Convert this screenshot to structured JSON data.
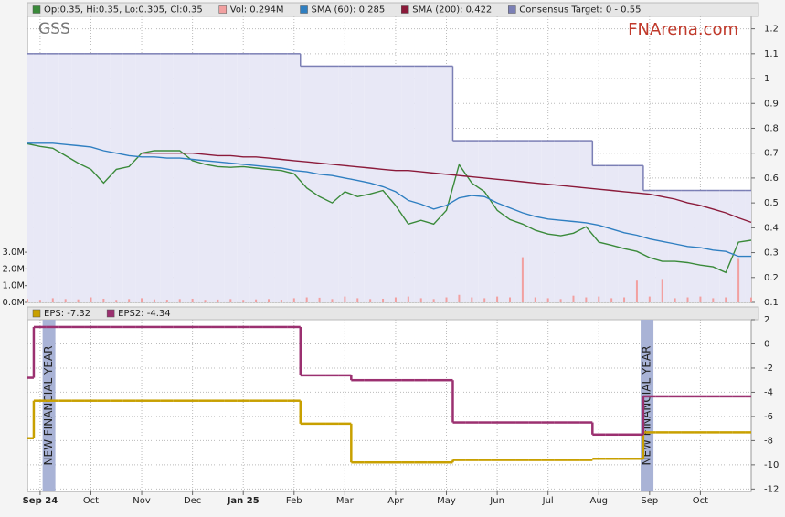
{
  "chart_data": [
    {
      "type": "line",
      "title": "GSS",
      "watermark": "FNArena.com",
      "categories": [
        null,
        "Sep 24",
        null,
        null,
        null,
        "Oct",
        null,
        null,
        null,
        "Nov",
        null,
        null,
        null,
        "Dec",
        null,
        null,
        null,
        "Jan 25",
        null,
        null,
        null,
        "Feb",
        null,
        null,
        null,
        "Mar",
        null,
        null,
        null,
        "Apr",
        null,
        null,
        null,
        "May",
        null,
        null,
        null,
        "Jun",
        null,
        null,
        null,
        "Jul",
        null,
        null,
        null,
        "Aug",
        null,
        null,
        null,
        "Sep",
        null,
        null,
        null,
        "Oct",
        null,
        null,
        null,
        null
      ],
      "ylim": [
        0.1,
        1.25
      ],
      "yticks": [
        0.1,
        0.2,
        0.3,
        0.4,
        0.5,
        0.6,
        0.7,
        0.8,
        0.9,
        1.0,
        1.1,
        1.2
      ],
      "y2lim": [
        0,
        17100000
      ],
      "y2ticks": [
        {
          "value": 0,
          "label": "0.0M"
        },
        {
          "value": 1000000,
          "label": "1.0M"
        },
        {
          "value": 2000000,
          "label": "2.0M"
        },
        {
          "value": 3000000,
          "label": "3.0M"
        }
      ],
      "grid": true,
      "series": [
        {
          "name": "Consensus Target: 0 - 0.55",
          "type": "step-area",
          "color": "#7b7fb5",
          "fill": "#e8e8f6",
          "values": [
            1.1,
            1.1,
            1.1,
            1.1,
            1.1,
            1.1,
            1.1,
            1.1,
            1.1,
            1.1,
            1.1,
            1.1,
            1.1,
            1.1,
            1.1,
            1.1,
            1.1,
            1.1,
            1.1,
            1.1,
            1.1,
            1.1,
            1.05,
            1.05,
            1.05,
            1.05,
            1.05,
            1.05,
            1.05,
            1.05,
            1.05,
            1.05,
            1.05,
            1.05,
            0.75,
            0.75,
            0.75,
            0.75,
            0.75,
            0.75,
            0.75,
            0.75,
            0.75,
            0.75,
            0.75,
            0.65,
            0.65,
            0.65,
            0.65,
            0.55,
            0.55,
            0.55,
            0.55,
            0.55,
            0.55,
            0.55,
            0.55,
            0.55
          ]
        },
        {
          "name": "Vol: 0.294M",
          "type": "bar",
          "axis": "y2",
          "color": "#f2a0a0",
          "values": [
            200000,
            150000,
            250000,
            200000,
            180000,
            300000,
            220000,
            150000,
            200000,
            250000,
            180000,
            160000,
            200000,
            220000,
            150000,
            170000,
            200000,
            150000,
            180000,
            200000,
            160000,
            250000,
            300000,
            280000,
            200000,
            350000,
            250000,
            200000,
            220000,
            300000,
            350000,
            250000,
            200000,
            300000,
            450000,
            300000,
            250000,
            350000,
            300000,
            2700000,
            300000,
            250000,
            200000,
            400000,
            300000,
            350000,
            250000,
            300000,
            1300000,
            350000,
            1400000,
            250000,
            300000,
            350000,
            250000,
            300000,
            2600000,
            294000
          ]
        },
        {
          "name": "Op:0.35, Hi:0.35, Lo:0.305, Cl:0.35",
          "type": "line",
          "color": "#3a8a3a",
          "values": [
            0.738,
            0.727,
            0.72,
            0.69,
            0.66,
            0.635,
            0.58,
            0.635,
            0.646,
            0.7,
            0.71,
            0.71,
            0.71,
            0.67,
            0.655,
            0.646,
            0.643,
            0.646,
            0.64,
            0.635,
            0.63,
            0.617,
            0.56,
            0.525,
            0.5,
            0.545,
            0.525,
            0.536,
            0.55,
            0.49,
            0.415,
            0.43,
            0.415,
            0.47,
            0.654,
            0.58,
            0.545,
            0.47,
            0.433,
            0.415,
            0.39,
            0.375,
            0.368,
            0.378,
            0.404,
            0.342,
            0.33,
            0.316,
            0.305,
            0.28,
            0.265,
            0.265,
            0.26,
            0.25,
            0.243,
            0.22,
            0.342,
            0.35
          ]
        },
        {
          "name": "SMA (60): 0.285",
          "type": "line",
          "color": "#2f7fc1",
          "values": [
            0.74,
            0.74,
            0.74,
            0.735,
            0.73,
            0.725,
            0.71,
            0.7,
            0.69,
            0.685,
            0.685,
            0.68,
            0.68,
            0.675,
            0.67,
            0.665,
            0.66,
            0.655,
            0.65,
            0.645,
            0.64,
            0.63,
            0.625,
            0.615,
            0.61,
            0.6,
            0.59,
            0.58,
            0.565,
            0.545,
            0.51,
            0.495,
            0.475,
            0.49,
            0.52,
            0.53,
            0.525,
            0.5,
            0.48,
            0.46,
            0.445,
            0.435,
            0.43,
            0.425,
            0.42,
            0.41,
            0.395,
            0.38,
            0.37,
            0.355,
            0.345,
            0.335,
            0.325,
            0.32,
            0.31,
            0.305,
            0.285,
            0.285
          ]
        },
        {
          "name": "SMA (200): 0.422",
          "type": "line",
          "color": "#8b1a3a",
          "values": [
            null,
            null,
            null,
            null,
            null,
            null,
            null,
            null,
            null,
            0.7,
            0.7,
            0.7,
            0.7,
            0.7,
            0.695,
            0.69,
            0.69,
            0.685,
            0.685,
            0.68,
            0.675,
            0.67,
            0.665,
            0.66,
            0.655,
            0.65,
            0.645,
            0.64,
            0.635,
            0.63,
            0.63,
            0.625,
            0.62,
            0.615,
            0.61,
            0.605,
            0.6,
            0.595,
            0.59,
            0.585,
            0.58,
            0.575,
            0.57,
            0.565,
            0.56,
            0.555,
            0.55,
            0.545,
            0.54,
            0.535,
            0.525,
            0.515,
            0.5,
            0.49,
            0.475,
            0.46,
            0.44,
            0.422
          ]
        }
      ]
    },
    {
      "type": "line",
      "ylim": [
        -12.2,
        2
      ],
      "yticks": [
        2,
        0,
        -2,
        -4,
        -6,
        -8,
        -10,
        -12
      ],
      "grid": true,
      "annotations": [
        "NEW FINANCIAL YEAR",
        "NEW FINANCIAL YEAR"
      ],
      "series": [
        {
          "name": "EPS: -7.32",
          "type": "step",
          "color": "#c8a000",
          "values": [
            -7.8,
            -4.7,
            -4.7,
            -4.7,
            -4.7,
            -4.7,
            -4.7,
            -4.7,
            -4.7,
            -4.7,
            -4.7,
            -4.7,
            -4.7,
            -4.7,
            -4.7,
            -4.7,
            -4.7,
            -4.7,
            -4.7,
            -4.7,
            -4.7,
            -4.7,
            -6.6,
            -6.6,
            -6.6,
            -6.6,
            -9.8,
            -9.8,
            -9.8,
            -9.8,
            -9.8,
            -9.8,
            -9.8,
            -9.8,
            -9.6,
            -9.6,
            -9.6,
            -9.6,
            -9.6,
            -9.6,
            -9.6,
            -9.6,
            -9.6,
            -9.6,
            -9.6,
            -9.5,
            -9.5,
            -9.5,
            -9.5,
            -7.32,
            -7.32,
            -7.32,
            -7.32,
            -7.32,
            -7.32,
            -7.32,
            -7.32,
            -7.32
          ]
        },
        {
          "name": "EPS2: -4.34",
          "type": "step",
          "color": "#9b3070",
          "values": [
            -2.8,
            1.4,
            1.4,
            1.4,
            1.4,
            1.4,
            1.4,
            1.4,
            1.4,
            1.4,
            1.4,
            1.4,
            1.4,
            1.4,
            1.4,
            1.4,
            1.4,
            1.4,
            1.4,
            1.4,
            1.4,
            1.4,
            -2.6,
            -2.6,
            -2.6,
            -2.6,
            -3.0,
            -3.0,
            -3.0,
            -3.0,
            -3.0,
            -3.0,
            -3.0,
            -3.0,
            -6.5,
            -6.5,
            -6.5,
            -6.5,
            -6.5,
            -6.5,
            -6.5,
            -6.5,
            -6.5,
            -6.5,
            -6.5,
            -7.5,
            -7.5,
            -7.5,
            -7.5,
            -4.34,
            -4.34,
            -4.34,
            -4.34,
            -4.34,
            -4.34,
            -4.34,
            -4.34,
            -4.34
          ]
        }
      ]
    }
  ]
}
